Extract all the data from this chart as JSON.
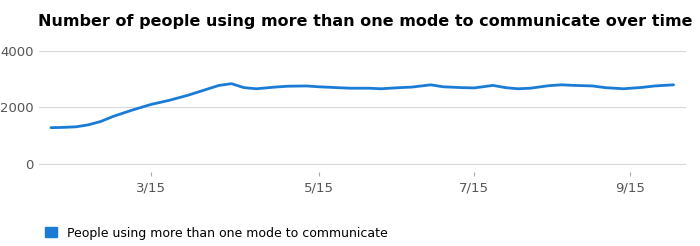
{
  "title": "Number of people using more than one mode to communicate over time",
  "line_color": "#1b7cd6",
  "background_color": "#ffffff",
  "legend_label": "People using more than one mode to communicate",
  "legend_color": "#1b7cd6",
  "x_tick_labels": [
    "3/15",
    "5/15",
    "7/15",
    "9/15"
  ],
  "y_ticks": [
    0,
    2000,
    4000
  ],
  "ylim": [
    -300,
    4500
  ],
  "x_values": [
    0,
    2,
    4,
    6,
    8,
    10,
    13,
    16,
    19,
    22,
    25,
    27,
    29,
    31,
    33,
    36,
    38,
    41,
    43,
    46,
    48,
    51,
    53,
    56,
    58,
    61,
    63,
    66,
    68,
    71,
    73,
    75,
    77,
    80,
    82,
    84,
    87,
    89,
    92,
    95,
    97,
    100
  ],
  "y_values": [
    1280,
    1290,
    1310,
    1380,
    1500,
    1680,
    1900,
    2100,
    2250,
    2430,
    2640,
    2780,
    2840,
    2700,
    2660,
    2720,
    2750,
    2760,
    2730,
    2700,
    2680,
    2680,
    2660,
    2700,
    2720,
    2800,
    2730,
    2700,
    2690,
    2780,
    2700,
    2660,
    2680,
    2770,
    2800,
    2780,
    2760,
    2700,
    2660,
    2710,
    2760,
    2800
  ],
  "x_tick_positions": [
    16,
    43,
    68,
    93
  ],
  "line_width": 2.0,
  "title_fontsize": 11.5,
  "tick_fontsize": 9.5,
  "legend_fontsize": 9
}
